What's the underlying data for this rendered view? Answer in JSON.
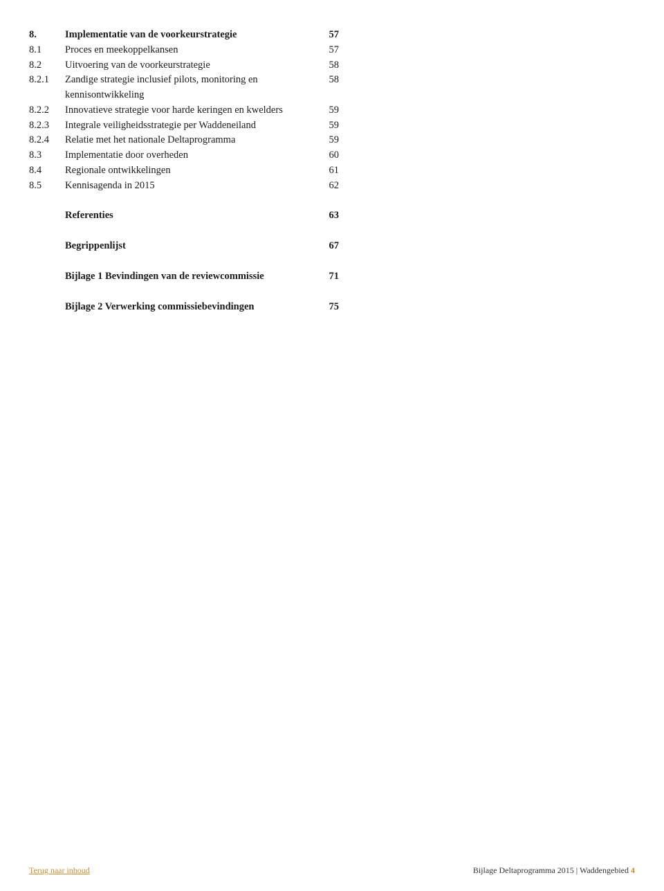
{
  "toc": {
    "rows": [
      {
        "num": "8.",
        "label": "Implementatie van de voorkeurstrategie",
        "page": "57",
        "bold": true
      },
      {
        "num": "8.1",
        "label": "Proces en meekoppelkansen",
        "page": "57",
        "bold": false
      },
      {
        "num": "8.2",
        "label": "Uitvoering van de voorkeurstrategie",
        "page": "58",
        "bold": false
      },
      {
        "num": "8.2.1",
        "label": "Zandige strategie inclusief pilots, monitoring en kennisontwikkeling",
        "page": "58",
        "bold": false
      },
      {
        "num": "8.2.2",
        "label": "Innovatieve strategie voor harde keringen en kwelders",
        "page": "59",
        "bold": false
      },
      {
        "num": "8.2.3",
        "label": "Integrale veiligheidsstrategie per Waddeneiland",
        "page": "59",
        "bold": false
      },
      {
        "num": "8.2.4",
        "label": "Relatie met het nationale Deltaprogramma",
        "page": "59",
        "bold": false
      },
      {
        "num": "8.3",
        "label": "Implementatie door overheden",
        "page": "60",
        "bold": false
      },
      {
        "num": "8.4",
        "label": "Regionale ontwikkelingen",
        "page": "61",
        "bold": false
      },
      {
        "num": "8.5",
        "label": "Kennisagenda in 2015",
        "page": "62",
        "bold": false
      }
    ],
    "sections": [
      {
        "label": "Referenties",
        "page": "63"
      },
      {
        "label": "Begrippenlijst",
        "page": "67"
      },
      {
        "label": "Bijlage 1 Bevindingen van de reviewcommissie",
        "page": "71"
      },
      {
        "label": "Bijlage 2 Verwerking commissiebevindingen",
        "page": "75"
      }
    ]
  },
  "footer": {
    "left": "Terug naar inhoud",
    "right_prefix": "Bijlage Deltaprogramma 2015 | Waddengebied",
    "page_number": "4"
  }
}
